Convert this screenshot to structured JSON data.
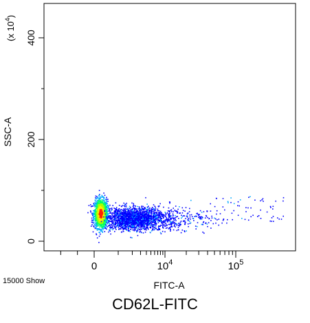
{
  "chart_data": {
    "type": "scatter",
    "title": "CD62L-FITC",
    "xlabel": "FITC-A",
    "ylabel": "SSC-A",
    "y_multiplier": "(x 10",
    "y_multiplier_exp": "4",
    "x_scale": "biexponential",
    "xlim": [
      -3000,
      100000
    ],
    "ylim": [
      0,
      480
    ],
    "x_ticks": [
      {
        "value": 0,
        "base": "0",
        "exp": ""
      },
      {
        "value": 10000,
        "base": "10",
        "exp": "4"
      },
      {
        "value": 100000,
        "base": "10",
        "exp": "5"
      }
    ],
    "y_ticks": [
      {
        "value": 0,
        "label": "0"
      },
      {
        "value": 200,
        "label": "200"
      },
      {
        "value": 400,
        "label": "400"
      }
    ],
    "event_count_label": "15000 Show",
    "density_colors": [
      "#0000ff",
      "#00aaff",
      "#00ff66",
      "#aaff00",
      "#ffee00",
      "#ff2200"
    ],
    "populations": [
      {
        "name": "",
        "x_center": 600,
        "x_spread": 450,
        "y_center": 55,
        "y_spread": 14,
        "count": 1500,
        "density": "high"
      },
      {
        "name": "",
        "x_center": 8000,
        "x_spread": 7000,
        "y_center": 45,
        "y_spread": 11,
        "count": 2200,
        "density": "low"
      }
    ],
    "grid": false,
    "legend": "none"
  }
}
